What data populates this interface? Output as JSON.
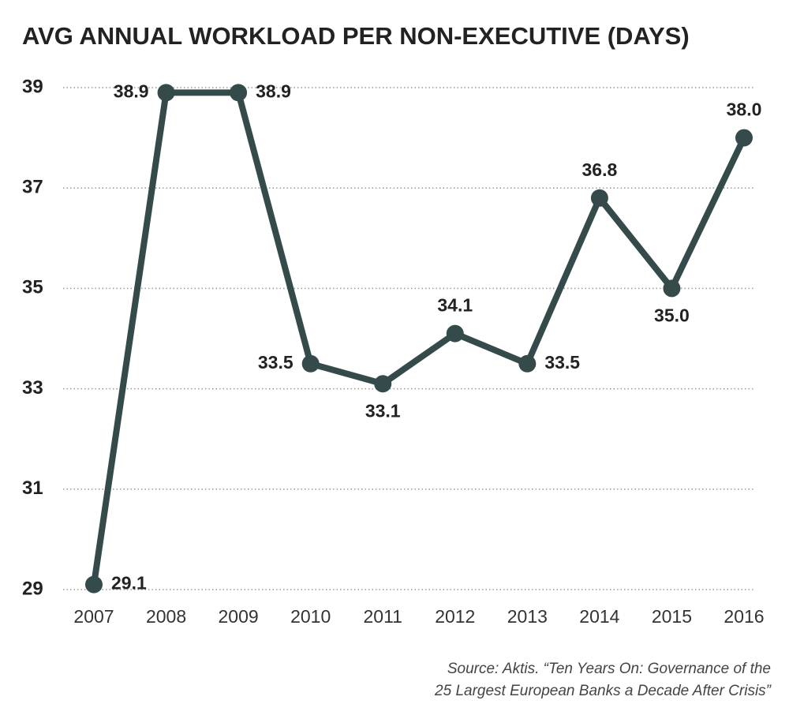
{
  "chart_data": {
    "type": "line",
    "title": "AVG ANNUAL WORKLOAD PER NON-EXECUTIVE (DAYS)",
    "categories": [
      "2007",
      "2008",
      "2009",
      "2010",
      "2011",
      "2012",
      "2013",
      "2014",
      "2015",
      "2016"
    ],
    "series": [
      {
        "name": "Avg annual workload",
        "color": "#354a4a",
        "values": [
          29.1,
          38.9,
          38.9,
          33.5,
          33.1,
          34.1,
          33.5,
          36.8,
          35.0,
          38.0
        ],
        "value_labels": [
          "29.1",
          "38.9",
          "38.9",
          "33.5",
          "33.1",
          "34.1",
          "33.5",
          "36.8",
          "35.0",
          "38.0"
        ]
      }
    ],
    "ylim": [
      29,
      39
    ],
    "yticks": [
      29,
      31,
      33,
      35,
      37,
      39
    ],
    "grid": true,
    "source": [
      "Source: Aktis. “Ten Years On: Governance of the",
      "25 Largest European Banks a Decade After Crisis”"
    ]
  }
}
